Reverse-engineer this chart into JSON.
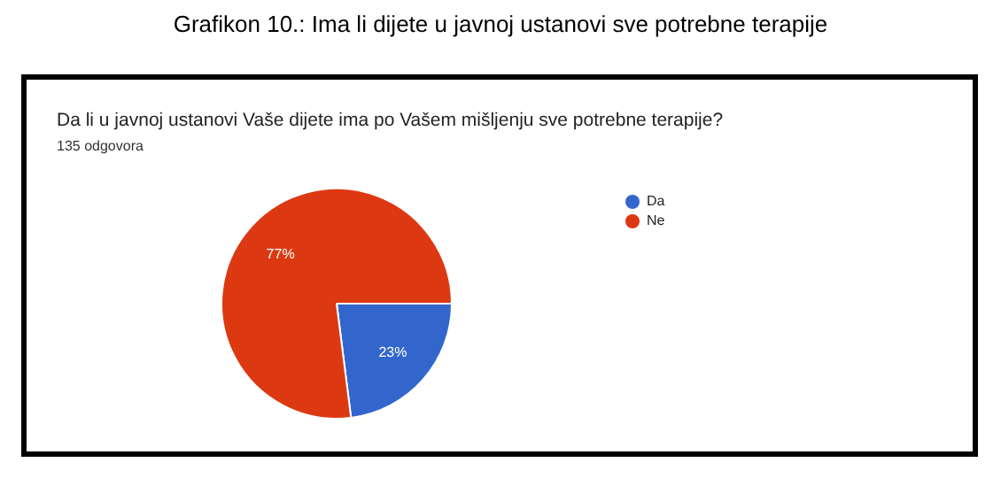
{
  "chart_data": {
    "type": "pie",
    "title": "Grafikon 10.: Ima li dijete u javnoj ustanovi sve potrebne terapije",
    "subtitle": "Da li u javnoj ustanovi Vaše dijete ima po Vašem mišljenju sve potrebne terapije?",
    "annotations": [
      "135 odgovora"
    ],
    "categories": [
      "Da",
      "Ne"
    ],
    "values": [
      23,
      77
    ],
    "colors": [
      "#3366cc",
      "#dc3912"
    ],
    "value_labels": [
      "23%",
      "77%"
    ],
    "legend": "right"
  }
}
